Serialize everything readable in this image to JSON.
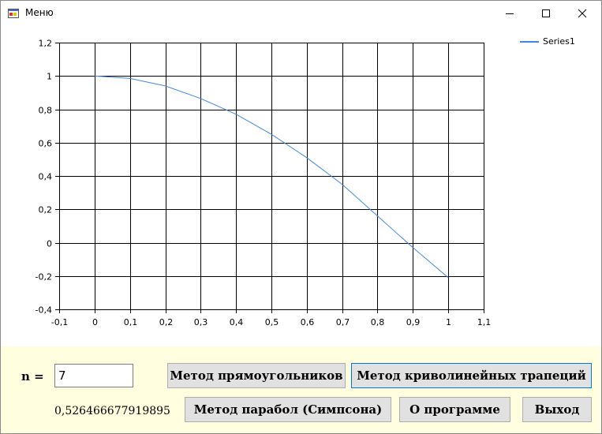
{
  "window": {
    "title": "Меню",
    "icons": {
      "app": "app-form-icon",
      "minimize": "minimize-icon",
      "maximize": "maximize-icon",
      "close": "close-icon"
    }
  },
  "chart": {
    "legend_label": "Series1",
    "series_color": "#3f89e8"
  },
  "chart_data": {
    "type": "line",
    "title": "",
    "xlabel": "",
    "ylabel": "",
    "xlim": [
      -0.1,
      1.1
    ],
    "ylim": [
      -0.4,
      1.2
    ],
    "grid": true,
    "legend": "top-right",
    "x_ticks": [
      "-0,1",
      "0",
      "0,1",
      "0,2",
      "0,3",
      "0,4",
      "0,5",
      "0,6",
      "0,7",
      "0,8",
      "0,9",
      "1",
      "1,1"
    ],
    "y_ticks": [
      "1,2",
      "1",
      "0,8",
      "0,6",
      "0,4",
      "0,2",
      "0",
      "-0,2",
      "-0,4"
    ],
    "series": [
      {
        "name": "Series1",
        "x": [
          0,
          0.1,
          0.2,
          0.3,
          0.4,
          0.5,
          0.6,
          0.7,
          0.8,
          0.9,
          1.0
        ],
        "y": [
          1.0,
          0.985,
          0.94,
          0.865,
          0.77,
          0.65,
          0.51,
          0.35,
          0.16,
          -0.03,
          -0.21
        ]
      }
    ]
  },
  "controls": {
    "n_label": "n =",
    "n_value": "7",
    "result": "0,526466677919895",
    "btn_rect": "Метод прямоугольников",
    "btn_trap": "Метод криволинейных трапеций",
    "btn_simpson": "Метод парабол (Симпсона)",
    "btn_about": "О программе",
    "btn_exit": "Выход"
  }
}
